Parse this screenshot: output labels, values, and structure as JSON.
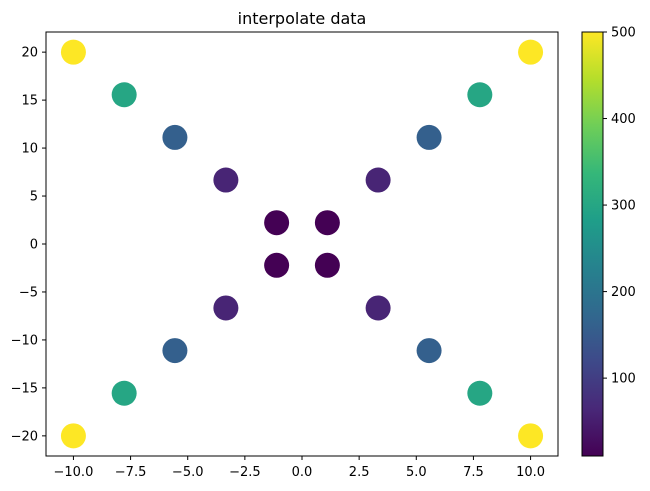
{
  "chart_data": {
    "type": "scatter",
    "title": "interpolate data",
    "xlabel": "",
    "ylabel": "",
    "xlim": [
      -11.2,
      11.2
    ],
    "ylim": [
      -22.1,
      22.1
    ],
    "x_ticks": [
      -10.0,
      -7.5,
      -5.0,
      -2.5,
      0.0,
      2.5,
      5.0,
      7.5,
      10.0
    ],
    "x_tick_labels": [
      "−10.0",
      "−7.5",
      "−5.0",
      "−2.5",
      "0.0",
      "2.5",
      "5.0",
      "7.5",
      "10.0"
    ],
    "y_ticks": [
      20,
      15,
      10,
      5,
      0,
      -5,
      -10,
      -15,
      -20
    ],
    "y_tick_labels": [
      "20",
      "15",
      "10",
      "5",
      "0",
      "−5",
      "−10",
      "−15",
      "−20"
    ],
    "grid": false,
    "colorbar": {
      "colormap": "viridis",
      "range": [
        10,
        500
      ],
      "ticks": [
        100,
        200,
        300,
        400,
        500
      ],
      "tick_labels": [
        "100",
        "200",
        "300",
        "400",
        "500"
      ],
      "colors": [
        "#440154",
        "#482878",
        "#3e4989",
        "#31688e",
        "#26828e",
        "#1f9e89",
        "#35b779",
        "#6ece58",
        "#b5de2b",
        "#fde725"
      ]
    },
    "points": [
      {
        "x": -10.0,
        "y": 20.0,
        "value": 500
      },
      {
        "x": -7.78,
        "y": 15.56,
        "value": 300
      },
      {
        "x": -5.56,
        "y": 11.11,
        "value": 160
      },
      {
        "x": -3.33,
        "y": 6.67,
        "value": 60
      },
      {
        "x": -1.11,
        "y": 2.22,
        "value": 10
      },
      {
        "x": 1.11,
        "y": 2.22,
        "value": 10
      },
      {
        "x": 3.33,
        "y": 6.67,
        "value": 60
      },
      {
        "x": 5.56,
        "y": 11.11,
        "value": 160
      },
      {
        "x": 7.78,
        "y": 15.56,
        "value": 300
      },
      {
        "x": 10.0,
        "y": 20.0,
        "value": 500
      },
      {
        "x": -10.0,
        "y": -20.0,
        "value": 500
      },
      {
        "x": -7.78,
        "y": -15.56,
        "value": 300
      },
      {
        "x": -5.56,
        "y": -11.11,
        "value": 160
      },
      {
        "x": -3.33,
        "y": -6.67,
        "value": 60
      },
      {
        "x": -1.11,
        "y": -2.22,
        "value": 10
      },
      {
        "x": 1.11,
        "y": -2.22,
        "value": 10
      },
      {
        "x": 3.33,
        "y": -6.67,
        "value": 60
      },
      {
        "x": 5.56,
        "y": -11.11,
        "value": 160
      },
      {
        "x": 7.78,
        "y": -15.56,
        "value": 300
      },
      {
        "x": 10.0,
        "y": -20.0,
        "value": 500
      }
    ]
  }
}
